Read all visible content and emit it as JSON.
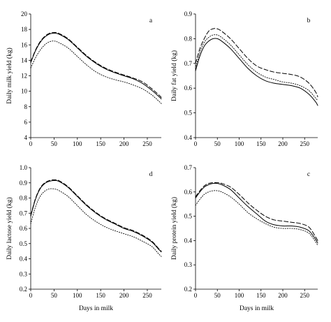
{
  "shared_xlabel": "Days in milk",
  "chart_data": [
    {
      "type": "line",
      "letter": "a",
      "ylabel": "Daily milk yield (kg)",
      "xlim": [
        0,
        280
      ],
      "ylim": [
        4,
        20
      ],
      "xticks": [
        0,
        50,
        100,
        150,
        200,
        250
      ],
      "yticks": [
        4,
        6,
        8,
        10,
        12,
        14,
        16,
        18,
        20
      ],
      "x": [
        0,
        10,
        20,
        30,
        40,
        50,
        60,
        80,
        100,
        120,
        140,
        160,
        180,
        200,
        220,
        240,
        260,
        275,
        280
      ],
      "series": [
        {
          "style": "solid",
          "values": [
            13.7,
            15.2,
            16.3,
            17.0,
            17.4,
            17.5,
            17.4,
            16.7,
            15.6,
            14.5,
            13.6,
            12.9,
            12.4,
            12.0,
            11.6,
            11.0,
            10.1,
            9.3,
            9.0
          ]
        },
        {
          "style": "dashed",
          "values": [
            13.8,
            15.3,
            16.4,
            17.1,
            17.5,
            17.6,
            17.5,
            16.8,
            15.7,
            14.6,
            13.7,
            13.0,
            12.5,
            12.1,
            11.7,
            11.2,
            10.3,
            9.5,
            9.2
          ]
        },
        {
          "style": "dotted",
          "values": [
            13.0,
            14.3,
            15.3,
            16.0,
            16.4,
            16.5,
            16.3,
            15.6,
            14.5,
            13.4,
            12.5,
            11.9,
            11.5,
            11.2,
            10.8,
            10.3,
            9.5,
            8.7,
            8.4
          ]
        }
      ]
    },
    {
      "type": "line",
      "letter": "b",
      "ylabel": "Daily fat yield (kg)",
      "xlim": [
        0,
        280
      ],
      "ylim": [
        0.4,
        0.9
      ],
      "xticks": [
        0,
        50,
        100,
        150,
        200,
        250
      ],
      "yticks": [
        0.4,
        0.5,
        0.6,
        0.7,
        0.8,
        0.9
      ],
      "x": [
        0,
        10,
        20,
        30,
        40,
        50,
        60,
        80,
        100,
        120,
        140,
        160,
        180,
        200,
        220,
        240,
        260,
        275,
        280
      ],
      "series": [
        {
          "style": "solid",
          "values": [
            0.67,
            0.73,
            0.77,
            0.79,
            0.8,
            0.8,
            0.79,
            0.76,
            0.72,
            0.68,
            0.65,
            0.63,
            0.62,
            0.615,
            0.61,
            0.6,
            0.575,
            0.545,
            0.53
          ]
        },
        {
          "style": "dashed",
          "values": [
            0.7,
            0.76,
            0.8,
            0.83,
            0.84,
            0.84,
            0.83,
            0.8,
            0.76,
            0.72,
            0.69,
            0.675,
            0.665,
            0.66,
            0.655,
            0.645,
            0.62,
            0.585,
            0.565
          ]
        },
        {
          "style": "dotted",
          "values": [
            0.68,
            0.745,
            0.785,
            0.805,
            0.815,
            0.815,
            0.805,
            0.775,
            0.735,
            0.695,
            0.665,
            0.645,
            0.635,
            0.625,
            0.62,
            0.61,
            0.59,
            0.56,
            0.55
          ]
        }
      ]
    },
    {
      "type": "line",
      "letter": "d",
      "ylabel": "Daily lactose yield (kg)",
      "xlim": [
        0,
        280
      ],
      "ylim": [
        0.2,
        1.0
      ],
      "xticks": [
        0,
        50,
        100,
        150,
        200,
        250
      ],
      "yticks": [
        0.2,
        0.3,
        0.4,
        0.5,
        0.6,
        0.7,
        0.8,
        0.9,
        1.0
      ],
      "x": [
        0,
        10,
        20,
        30,
        40,
        50,
        60,
        80,
        100,
        120,
        140,
        160,
        180,
        200,
        220,
        240,
        260,
        275,
        280
      ],
      "series": [
        {
          "style": "solid",
          "values": [
            0.68,
            0.79,
            0.86,
            0.895,
            0.91,
            0.915,
            0.91,
            0.87,
            0.81,
            0.75,
            0.7,
            0.66,
            0.63,
            0.6,
            0.58,
            0.55,
            0.51,
            0.46,
            0.445
          ]
        },
        {
          "style": "dashed",
          "values": [
            0.685,
            0.795,
            0.865,
            0.9,
            0.915,
            0.92,
            0.915,
            0.875,
            0.815,
            0.755,
            0.705,
            0.665,
            0.635,
            0.605,
            0.585,
            0.555,
            0.515,
            0.465,
            0.45
          ]
        },
        {
          "style": "dotted",
          "values": [
            0.63,
            0.74,
            0.81,
            0.845,
            0.86,
            0.86,
            0.85,
            0.81,
            0.75,
            0.69,
            0.645,
            0.61,
            0.585,
            0.565,
            0.545,
            0.515,
            0.48,
            0.43,
            0.415
          ]
        }
      ]
    },
    {
      "type": "line",
      "letter": "c",
      "ylabel": "Daily protein yield (kg)",
      "xlim": [
        0,
        280
      ],
      "ylim": [
        0.2,
        0.7
      ],
      "xticks": [
        0,
        50,
        100,
        150,
        200,
        250
      ],
      "yticks": [
        0.2,
        0.3,
        0.4,
        0.5,
        0.6,
        0.7
      ],
      "x": [
        0,
        10,
        20,
        30,
        40,
        50,
        60,
        80,
        100,
        120,
        140,
        160,
        180,
        200,
        220,
        240,
        260,
        275,
        280
      ],
      "series": [
        {
          "style": "solid",
          "values": [
            0.575,
            0.6,
            0.62,
            0.63,
            0.635,
            0.635,
            0.63,
            0.61,
            0.575,
            0.54,
            0.51,
            0.48,
            0.465,
            0.46,
            0.46,
            0.455,
            0.44,
            0.405,
            0.39
          ]
        },
        {
          "style": "dashed",
          "values": [
            0.58,
            0.605,
            0.625,
            0.635,
            0.638,
            0.638,
            0.635,
            0.62,
            0.59,
            0.555,
            0.525,
            0.5,
            0.485,
            0.48,
            0.475,
            0.47,
            0.455,
            0.415,
            0.4
          ]
        },
        {
          "style": "dotted",
          "values": [
            0.545,
            0.57,
            0.59,
            0.6,
            0.605,
            0.605,
            0.6,
            0.58,
            0.55,
            0.515,
            0.49,
            0.47,
            0.455,
            0.45,
            0.45,
            0.445,
            0.43,
            0.395,
            0.38
          ]
        }
      ]
    }
  ]
}
